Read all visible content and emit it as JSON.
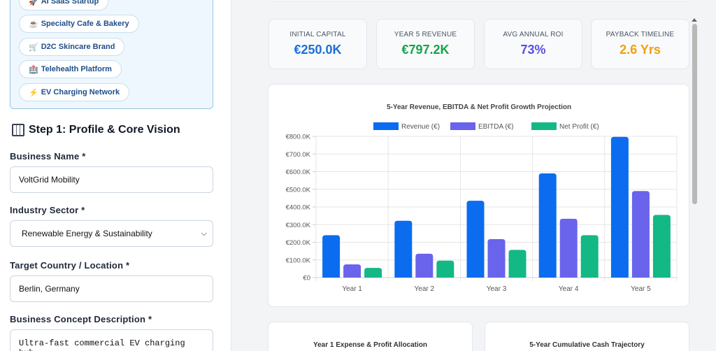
{
  "presets": [
    {
      "icon": "🚀",
      "label": "AI SaaS Startup"
    },
    {
      "icon": "☕",
      "label": "Specialty Cafe & Bakery"
    },
    {
      "icon": "🛒",
      "label": "D2C Skincare Brand"
    },
    {
      "icon": "🏥",
      "label": "Telehealth Platform"
    },
    {
      "icon": "⚡",
      "label": "EV Charging Network"
    }
  ],
  "step": {
    "title": "Step 1: Profile & Core Vision"
  },
  "form": {
    "business_name_label": "Business Name *",
    "business_name_value": "VoltGrid Mobility",
    "industry_label": "Industry Sector *",
    "industry_value": "Renewable Energy & Sustainability",
    "location_label": "Target Country / Location *",
    "location_value": "Berlin, Germany",
    "concept_label": "Business Concept Description *",
    "concept_value": "Ultra-fast commercial EV charging hub"
  },
  "kpis": [
    {
      "label": "INITIAL CAPITAL",
      "value": "€250.0K",
      "color": "#1d6fd8"
    },
    {
      "label": "YEAR 5 REVENUE",
      "value": "€797.2K",
      "color": "#16a34a"
    },
    {
      "label": "AVG ANNUAL ROI",
      "value": "73%",
      "color": "#5b4fe0"
    },
    {
      "label": "PAYBACK TIMELINE",
      "value": "2.6 Yrs",
      "color": "#f59e0b"
    }
  ],
  "chart_data": {
    "type": "bar",
    "title": "5-Year Revenue, EBITDA & Net Profit Growth Projection",
    "categories": [
      "Year 1",
      "Year 2",
      "Year 3",
      "Year 4",
      "Year 5"
    ],
    "series": [
      {
        "name": "Revenue (€)",
        "color": "#0b6cf0",
        "values": [
          240,
          322,
          435,
          590,
          797
        ]
      },
      {
        "name": "EBITDA (€)",
        "color": "#6a63ec",
        "values": [
          75,
          135,
          218,
          333,
          490
        ]
      },
      {
        "name": "Net Profit (€)",
        "color": "#14b884",
        "values": [
          55,
          96,
          157,
          240,
          355
        ]
      }
    ],
    "ylim": [
      0,
      800
    ],
    "yticks": [
      "€0",
      "€100.0K",
      "€200.0K",
      "€300.0K",
      "€400.0K",
      "€500.0K",
      "€600.0K",
      "€700.0K",
      "€800.0K"
    ],
    "legend": "top",
    "grid": true
  },
  "lower_cards": {
    "left_title": "Year 1 Expense & Profit Allocation",
    "right_title": "5-Year Cumulative Cash Trajectory"
  }
}
